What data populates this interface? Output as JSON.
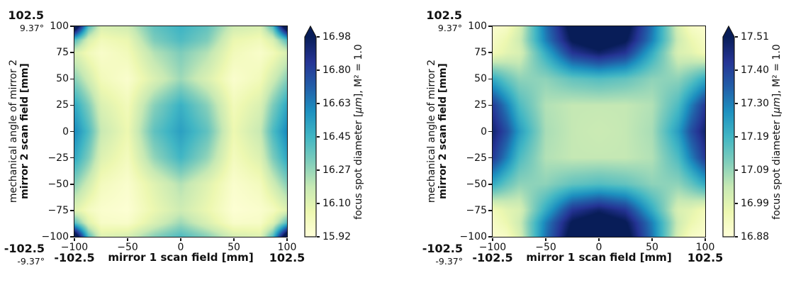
{
  "colormap": {
    "name": "YlGnBu",
    "stops": [
      {
        "t": 0.0,
        "color": "#ffffd9"
      },
      {
        "t": 0.125,
        "color": "#edf8b1"
      },
      {
        "t": 0.25,
        "color": "#c7e9b4"
      },
      {
        "t": 0.375,
        "color": "#7fcdbb"
      },
      {
        "t": 0.5,
        "color": "#41b6c4"
      },
      {
        "t": 0.625,
        "color": "#1d91c0"
      },
      {
        "t": 0.75,
        "color": "#225ea8"
      },
      {
        "t": 0.875,
        "color": "#253494"
      },
      {
        "t": 1.0,
        "color": "#081d58"
      }
    ]
  },
  "chart_data": [
    {
      "type": "heatmap",
      "title": "",
      "xlabel": "mirror 1 scan field [mm]",
      "ylabel_line1": "mechanical angle of mirror 2",
      "ylabel_line2": "mirror 2 scan field [mm]",
      "colorbar_label": "focus spot diameter [μm], M² = 1.0",
      "colorbar_label_parts": {
        "prefix": "focus spot diameter [",
        "mu": "μm",
        "suffix": "], M² = 1.0"
      },
      "colormap": "YlGnBu",
      "vmin": 15.92,
      "vmax": 16.98,
      "extend": "max",
      "colorbar_ticks": [
        "16.98",
        "16.80",
        "16.63",
        "16.45",
        "16.27",
        "16.10",
        "15.92"
      ],
      "x_tick_labels": [
        "−100",
        "−50",
        "0",
        "50",
        "100"
      ],
      "y_tick_labels": [
        "100",
        "75",
        "50",
        "25",
        "0",
        "−25",
        "−50",
        "−75",
        "−100"
      ],
      "xlim": [
        -100,
        100
      ],
      "ylim": [
        -100,
        100
      ],
      "annotations": {
        "y_max_mm": "102.5",
        "y_max_deg": "9.37°",
        "y_min_mm": "-102.5",
        "y_min_deg": "-9.37°",
        "x_min_mm": "-102.5",
        "x_max_mm": "102.5"
      },
      "x": [
        -100,
        -87,
        -75,
        -50,
        -25,
        0,
        25,
        50,
        75,
        87,
        100
      ],
      "y": [
        100,
        87,
        75,
        50,
        25,
        0,
        -25,
        -50,
        -75,
        -87,
        -100
      ],
      "values": [
        [
          17.2,
          16.4,
          16.12,
          16.15,
          16.38,
          16.46,
          16.38,
          16.15,
          16.12,
          16.4,
          17.2
        ],
        [
          16.4,
          16.12,
          16.02,
          16.06,
          16.32,
          16.42,
          16.32,
          16.06,
          16.02,
          16.12,
          16.4
        ],
        [
          16.12,
          16.02,
          15.97,
          16.02,
          16.22,
          16.32,
          16.22,
          16.02,
          15.97,
          16.02,
          16.12
        ],
        [
          16.3,
          16.15,
          16.02,
          15.96,
          16.12,
          16.26,
          16.12,
          15.96,
          16.02,
          16.15,
          16.3
        ],
        [
          16.5,
          16.32,
          16.12,
          16.02,
          16.3,
          16.47,
          16.3,
          16.02,
          16.12,
          16.32,
          16.5
        ],
        [
          16.6,
          16.42,
          16.18,
          16.05,
          16.38,
          16.53,
          16.38,
          16.05,
          16.18,
          16.42,
          16.6
        ],
        [
          16.5,
          16.32,
          16.11,
          16.01,
          16.28,
          16.45,
          16.28,
          16.01,
          16.11,
          16.32,
          16.5
        ],
        [
          16.3,
          16.15,
          16.01,
          15.96,
          16.1,
          16.22,
          16.1,
          15.96,
          16.01,
          16.15,
          16.3
        ],
        [
          16.1,
          16.0,
          15.96,
          15.94,
          16.06,
          16.16,
          16.06,
          15.94,
          15.96,
          16.0,
          16.1
        ],
        [
          16.4,
          16.1,
          15.98,
          15.97,
          16.12,
          16.26,
          16.12,
          15.97,
          15.98,
          16.1,
          16.4
        ],
        [
          17.2,
          16.4,
          16.1,
          16.13,
          16.3,
          16.42,
          16.3,
          16.13,
          16.1,
          16.4,
          17.2
        ]
      ]
    },
    {
      "type": "heatmap",
      "title": "",
      "xlabel": "mirror 1 scan field [mm]",
      "ylabel_line1": "mechanical angle of mirror 2",
      "ylabel_line2": "mirror 2 scan field [mm]",
      "colorbar_label": "focus spot diameter [μm], M² = 1.0",
      "colorbar_label_parts": {
        "prefix": "focus spot diameter [",
        "mu": "μm",
        "suffix": "], M² = 1.0"
      },
      "colormap": "YlGnBu",
      "vmin": 16.88,
      "vmax": 17.51,
      "extend": "max",
      "colorbar_ticks": [
        "17.51",
        "17.40",
        "17.30",
        "17.19",
        "17.09",
        "16.99",
        "16.88"
      ],
      "x_tick_labels": [
        "−100",
        "−50",
        "0",
        "50",
        "100"
      ],
      "y_tick_labels": [
        "100",
        "75",
        "50",
        "25",
        "0",
        "−25",
        "−50",
        "−75",
        "−100"
      ],
      "xlim": [
        -100,
        100
      ],
      "ylim": [
        -100,
        100
      ],
      "annotations": {
        "y_max_mm": "102.5",
        "y_max_deg": "9.37°",
        "y_min_mm": "-102.5",
        "y_min_deg": "-9.37°",
        "x_min_mm": "-102.5",
        "x_max_mm": "102.5"
      },
      "x": [
        -100,
        -87,
        -75,
        -50,
        -25,
        0,
        25,
        50,
        75,
        87,
        100
      ],
      "y": [
        100,
        87,
        75,
        50,
        25,
        0,
        -25,
        -50,
        -75,
        -87,
        -100
      ],
      "values": [
        [
          16.9,
          16.92,
          17.0,
          17.32,
          17.56,
          17.63,
          17.56,
          17.32,
          17.0,
          16.92,
          16.9
        ],
        [
          16.92,
          16.96,
          17.02,
          17.3,
          17.52,
          17.58,
          17.52,
          17.3,
          17.02,
          16.96,
          16.92
        ],
        [
          16.94,
          16.98,
          17.0,
          17.22,
          17.43,
          17.49,
          17.43,
          17.22,
          17.0,
          16.98,
          16.94
        ],
        [
          17.22,
          17.15,
          17.1,
          17.1,
          17.15,
          17.17,
          17.15,
          17.1,
          17.1,
          17.15,
          17.22
        ],
        [
          17.42,
          17.3,
          17.18,
          17.06,
          17.04,
          17.04,
          17.04,
          17.06,
          17.18,
          17.3,
          17.42
        ],
        [
          17.48,
          17.38,
          17.25,
          17.07,
          17.04,
          17.03,
          17.04,
          17.07,
          17.25,
          17.38,
          17.48
        ],
        [
          17.42,
          17.3,
          17.18,
          17.06,
          17.04,
          17.04,
          17.04,
          17.06,
          17.18,
          17.3,
          17.42
        ],
        [
          17.22,
          17.15,
          17.1,
          17.1,
          17.15,
          17.17,
          17.15,
          17.1,
          17.1,
          17.15,
          17.22
        ],
        [
          16.94,
          16.98,
          17.0,
          17.22,
          17.43,
          17.49,
          17.43,
          17.22,
          17.0,
          16.98,
          16.94
        ],
        [
          16.92,
          16.96,
          17.02,
          17.3,
          17.52,
          17.58,
          17.52,
          17.3,
          17.02,
          16.96,
          16.92
        ],
        [
          16.9,
          16.92,
          17.0,
          17.32,
          17.56,
          17.63,
          17.56,
          17.32,
          17.0,
          16.92,
          16.9
        ]
      ]
    }
  ]
}
